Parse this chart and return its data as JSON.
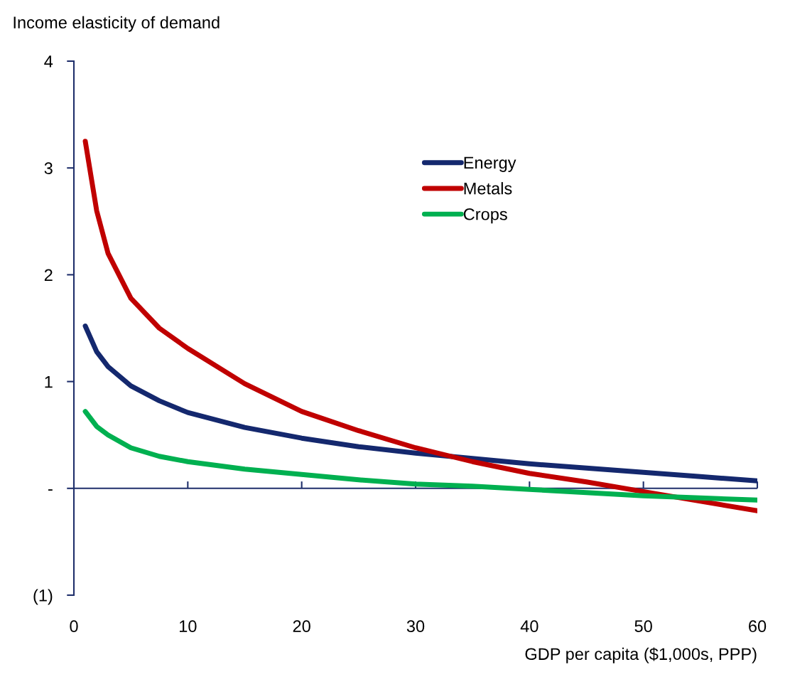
{
  "chart_data": {
    "type": "line",
    "ylabel": "Income elasticity of demand",
    "xlabel": "GDP per capita ($1,000s, PPP)",
    "x": [
      1,
      2,
      3,
      5,
      7.5,
      10,
      15,
      20,
      25,
      30,
      35,
      40,
      45,
      50,
      55,
      60
    ],
    "series": [
      {
        "name": "Energy",
        "color": "#14286e",
        "values": [
          1.52,
          1.28,
          1.14,
          0.96,
          0.82,
          0.71,
          0.57,
          0.47,
          0.39,
          0.33,
          0.28,
          0.23,
          0.19,
          0.15,
          0.11,
          0.07
        ]
      },
      {
        "name": "Metals",
        "color": "#c00000",
        "values": [
          3.25,
          2.6,
          2.2,
          1.78,
          1.5,
          1.31,
          0.98,
          0.72,
          0.54,
          0.38,
          0.25,
          0.14,
          0.06,
          -0.03,
          -0.12,
          -0.21
        ]
      },
      {
        "name": "Crops",
        "color": "#00b050",
        "values": [
          0.72,
          0.58,
          0.5,
          0.38,
          0.3,
          0.25,
          0.18,
          0.13,
          0.08,
          0.04,
          0.02,
          -0.01,
          -0.04,
          -0.07,
          -0.09,
          -0.11
        ]
      }
    ],
    "xlim": [
      0,
      60
    ],
    "xticks": [
      0,
      10,
      20,
      30,
      40,
      50,
      60
    ],
    "ylim": [
      -1,
      4
    ],
    "yticks": [
      {
        "value": -1,
        "label": "(1)"
      },
      {
        "value": 0,
        "label": "-"
      },
      1,
      2,
      3,
      4
    ],
    "ref_lines": [
      {
        "axis": "y",
        "value": 0,
        "color": "#1f2f6b"
      }
    ],
    "grid": false,
    "legend": "top",
    "marker": "none",
    "line_style": "solid"
  }
}
